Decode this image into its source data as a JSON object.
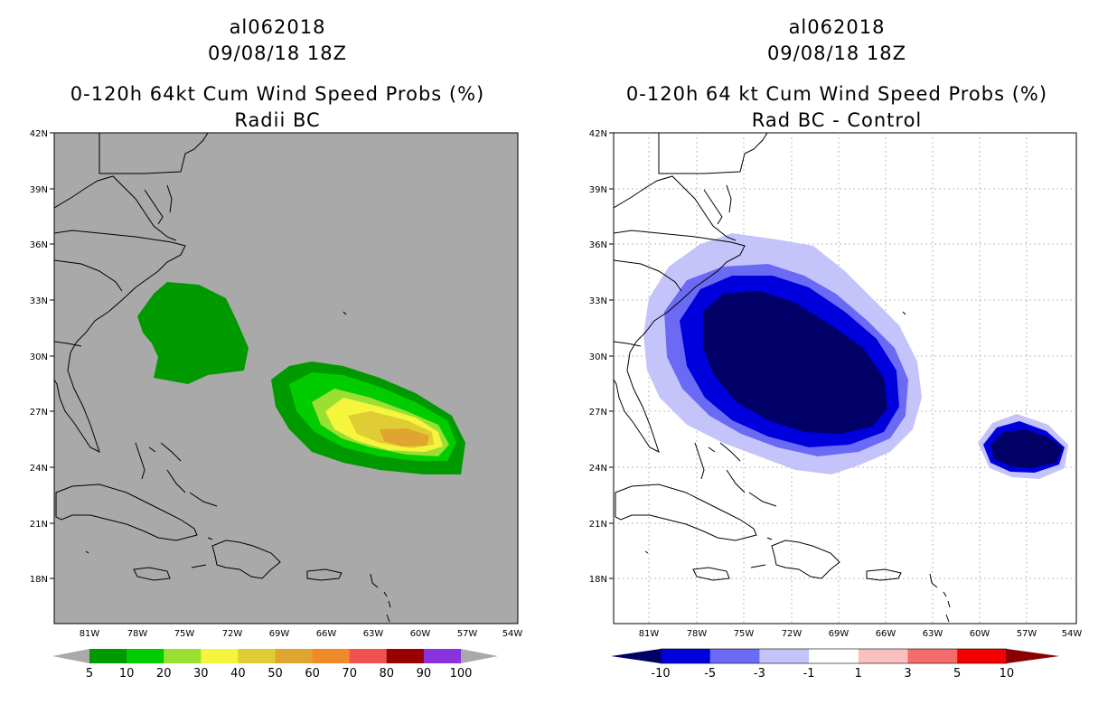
{
  "left_panel": {
    "title_line1": "al062018",
    "title_line2": "09/08/18 18Z",
    "title_line3": "0-120h 64kt Cum Wind Speed Probs (%)",
    "title_line4": "Radii BC",
    "background_color": "#a9a9a9",
    "colorbar": {
      "labels": [
        "5",
        "10",
        "20",
        "30",
        "40",
        "50",
        "60",
        "70",
        "80",
        "90",
        "100"
      ],
      "colors": [
        "#009900",
        "#00cc00",
        "#99e033",
        "#f5f53d",
        "#e0cc33",
        "#e0a52e",
        "#f08a29",
        "#f05050",
        "#990000",
        "#8833dd"
      ],
      "end_color": "#a9a9a9"
    }
  },
  "right_panel": {
    "title_line1": "al062018",
    "title_line2": "09/08/18 18Z",
    "title_line3": "0-120h 64 kt Cum Wind Speed Probs (%)",
    "title_line4": "Rad BC - Control",
    "background_color": "#ffffff",
    "colorbar": {
      "labels": [
        "-10",
        "-5",
        "-3",
        "-1",
        "1",
        "3",
        "5",
        "10"
      ],
      "colors": [
        "#0000dd",
        "#6a6af5",
        "#c4c4fa",
        "#ffffff",
        "#fac0c0",
        "#f56a6a",
        "#f50000"
      ],
      "end_left": "#000066",
      "end_right": "#880000"
    }
  },
  "axes": {
    "lat_labels": [
      "42N",
      "39N",
      "36N",
      "33N",
      "30N",
      "27N",
      "24N",
      "21N",
      "18N"
    ],
    "lon_labels": [
      "81W",
      "78W",
      "75W",
      "72W",
      "69W",
      "66W",
      "63W",
      "60W",
      "57W",
      "54W"
    ]
  }
}
